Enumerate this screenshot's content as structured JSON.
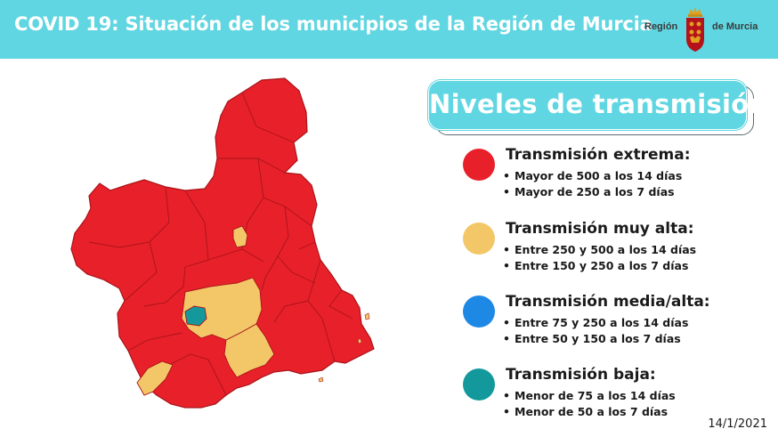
{
  "header": {
    "title": "COVID 19: Situación de los municipios de la Región de Murcia",
    "background": "#5fd6e1"
  },
  "logo": {
    "left_text": "Región",
    "right_text": "de Murcia"
  },
  "legend": {
    "title": "Niveles de transmisión:",
    "levels": [
      {
        "name": "Transmisión extrema:",
        "color": "#e8202a",
        "items": [
          "Mayor de 500 a los 14 días",
          "Mayor de 250 a los 7 días"
        ]
      },
      {
        "name": "Transmisión muy alta:",
        "color": "#f3c767",
        "items": [
          "Entre 250 y 500 a los 14 días",
          "Entre 150 y 250 a los 7 días"
        ]
      },
      {
        "name": "Transmisión media/alta:",
        "color": "#1e88e5",
        "items": [
          "Entre 75 y 250 a los 14 días",
          "Entre 50 y 150 a los 7 días"
        ]
      },
      {
        "name": "Transmisión baja:",
        "color": "#13999c",
        "items": [
          "Menor de 75 a los 14 días",
          "Menor de 50 a los 7 días"
        ]
      }
    ]
  },
  "map_colors": {
    "extreme": "#e8202a",
    "very_high": "#f3c767",
    "low": "#13999c",
    "border": "#a8141a"
  },
  "date": "14/1/2021"
}
